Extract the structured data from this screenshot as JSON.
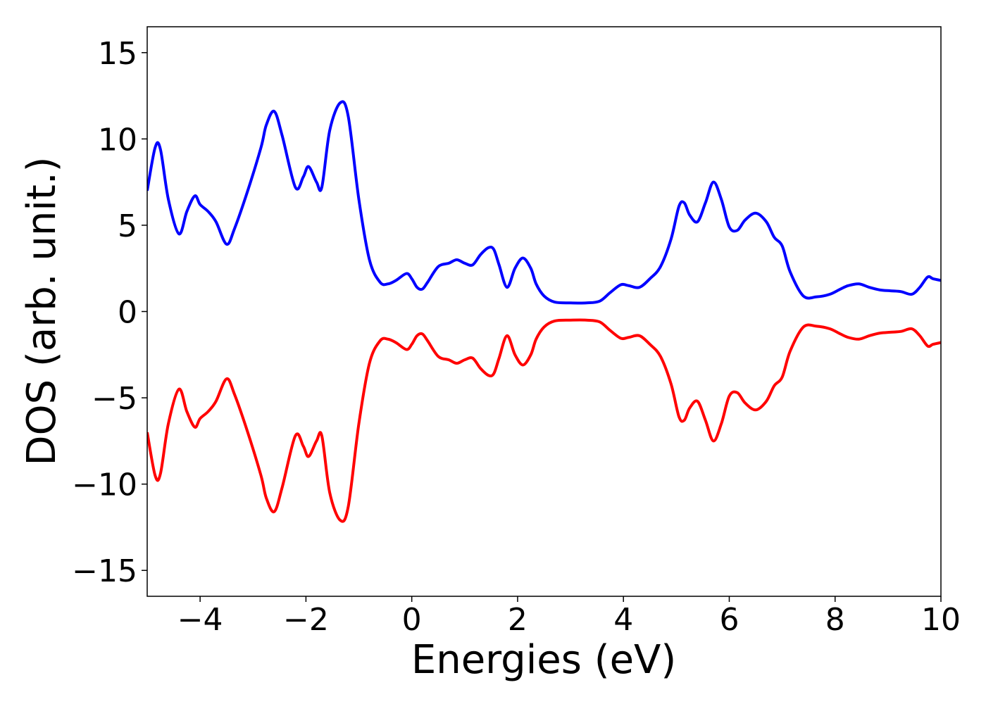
{
  "chart_data": {
    "type": "line",
    "xlabel": "Energies (eV)",
    "ylabel": "DOS (arb. unit.)",
    "xlim": [
      -5,
      10
    ],
    "ylim": [
      -16.5,
      16.5
    ],
    "xticks": [
      -4,
      -2,
      0,
      2,
      4,
      6,
      8,
      10
    ],
    "xtick_labels": [
      "−4",
      "−2",
      "0",
      "2",
      "4",
      "6",
      "8",
      "10"
    ],
    "yticks": [
      15,
      10,
      5,
      0,
      -5,
      -10,
      -15
    ],
    "ytick_labels": [
      "15",
      "10",
      "5",
      "0",
      "−5",
      "−10",
      "−15"
    ],
    "grid": false,
    "legend": "none",
    "series": [
      {
        "color": "#0000ff",
        "x": [
          -5.0,
          -4.85,
          -4.75,
          -4.6,
          -4.4,
          -4.25,
          -4.1,
          -4.0,
          -3.85,
          -3.7,
          -3.5,
          -3.35,
          -3.1,
          -2.85,
          -2.75,
          -2.6,
          -2.45,
          -2.2,
          -2.05,
          -1.95,
          -1.8,
          -1.7,
          -1.55,
          -1.35,
          -1.2,
          -1.0,
          -0.8,
          -0.6,
          -0.45,
          -0.3,
          -0.1,
          0.0,
          0.1,
          0.2,
          0.3,
          0.5,
          0.7,
          0.85,
          1.0,
          1.15,
          1.3,
          1.45,
          1.55,
          1.65,
          1.8,
          1.95,
          2.1,
          2.25,
          2.35,
          2.5,
          2.7,
          3.0,
          3.3,
          3.55,
          3.75,
          3.95,
          4.1,
          4.3,
          4.5,
          4.7,
          4.9,
          5.05,
          5.15,
          5.25,
          5.4,
          5.55,
          5.7,
          5.85,
          6.0,
          6.15,
          6.3,
          6.5,
          6.7,
          6.85,
          7.0,
          7.15,
          7.4,
          7.65,
          7.9,
          8.1,
          8.25,
          8.45,
          8.65,
          8.85,
          9.05,
          9.25,
          9.45,
          9.6,
          9.75,
          9.85,
          10.0
        ],
        "y": [
          7.0,
          9.5,
          9.4,
          6.5,
          4.5,
          5.8,
          6.7,
          6.2,
          5.8,
          5.2,
          3.9,
          4.8,
          7.0,
          9.5,
          10.8,
          11.6,
          10.2,
          7.2,
          7.8,
          8.4,
          7.5,
          7.2,
          10.5,
          12.1,
          11.3,
          6.5,
          3.0,
          1.7,
          1.6,
          1.8,
          2.2,
          1.9,
          1.4,
          1.3,
          1.7,
          2.6,
          2.8,
          3.0,
          2.8,
          2.7,
          3.3,
          3.7,
          3.6,
          2.7,
          1.4,
          2.5,
          3.1,
          2.5,
          1.6,
          0.9,
          0.55,
          0.5,
          0.5,
          0.6,
          1.1,
          1.55,
          1.5,
          1.4,
          1.9,
          2.6,
          4.2,
          6.1,
          6.3,
          5.6,
          5.2,
          6.3,
          7.5,
          6.5,
          4.9,
          4.7,
          5.3,
          5.7,
          5.2,
          4.3,
          3.8,
          2.3,
          0.9,
          0.85,
          1.0,
          1.3,
          1.5,
          1.6,
          1.4,
          1.25,
          1.2,
          1.15,
          1.0,
          1.4,
          2.0,
          1.9,
          1.8
        ]
      },
      {
        "color": "#ff0000",
        "x": [
          -5.0,
          -4.85,
          -4.75,
          -4.6,
          -4.4,
          -4.25,
          -4.1,
          -4.0,
          -3.85,
          -3.7,
          -3.5,
          -3.35,
          -3.1,
          -2.85,
          -2.75,
          -2.6,
          -2.45,
          -2.2,
          -2.05,
          -1.95,
          -1.8,
          -1.7,
          -1.55,
          -1.35,
          -1.2,
          -1.0,
          -0.8,
          -0.6,
          -0.45,
          -0.3,
          -0.1,
          0.0,
          0.1,
          0.2,
          0.3,
          0.5,
          0.7,
          0.85,
          1.0,
          1.15,
          1.3,
          1.45,
          1.55,
          1.65,
          1.8,
          1.95,
          2.1,
          2.25,
          2.35,
          2.5,
          2.7,
          3.0,
          3.3,
          3.55,
          3.75,
          3.95,
          4.1,
          4.3,
          4.5,
          4.7,
          4.9,
          5.05,
          5.15,
          5.25,
          5.4,
          5.55,
          5.7,
          5.85,
          6.0,
          6.15,
          6.3,
          6.5,
          6.7,
          6.85,
          7.0,
          7.15,
          7.4,
          7.65,
          7.9,
          8.1,
          8.25,
          8.45,
          8.65,
          8.85,
          9.05,
          9.25,
          9.45,
          9.6,
          9.75,
          9.85,
          10.0
        ],
        "y": [
          -7.0,
          -9.5,
          -9.4,
          -6.5,
          -4.5,
          -5.8,
          -6.7,
          -6.2,
          -5.8,
          -5.2,
          -3.9,
          -4.8,
          -7.0,
          -9.5,
          -10.8,
          -11.6,
          -10.2,
          -7.2,
          -7.8,
          -8.4,
          -7.5,
          -7.2,
          -10.5,
          -12.1,
          -11.3,
          -6.5,
          -3.0,
          -1.7,
          -1.6,
          -1.8,
          -2.2,
          -1.9,
          -1.4,
          -1.3,
          -1.7,
          -2.6,
          -2.8,
          -3.0,
          -2.8,
          -2.7,
          -3.3,
          -3.7,
          -3.6,
          -2.7,
          -1.4,
          -2.5,
          -3.1,
          -2.5,
          -1.6,
          -0.9,
          -0.55,
          -0.5,
          -0.5,
          -0.6,
          -1.1,
          -1.55,
          -1.5,
          -1.4,
          -1.9,
          -2.6,
          -4.2,
          -6.1,
          -6.3,
          -5.6,
          -5.2,
          -6.3,
          -7.5,
          -6.5,
          -4.9,
          -4.7,
          -5.3,
          -5.7,
          -5.2,
          -4.3,
          -3.8,
          -2.3,
          -0.9,
          -0.85,
          -1.0,
          -1.3,
          -1.5,
          -1.6,
          -1.4,
          -1.25,
          -1.2,
          -1.15,
          -1.0,
          -1.4,
          -2.0,
          -1.9,
          -1.8
        ]
      }
    ]
  }
}
